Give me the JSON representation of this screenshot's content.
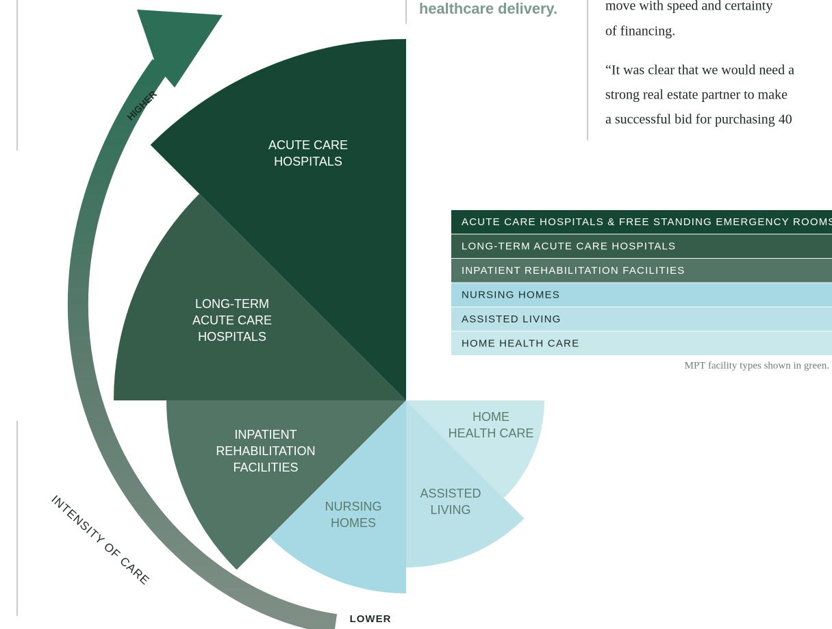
{
  "header": {
    "left_fragment": "healthcare delivery.",
    "right_lines": [
      "move with speed and certainty",
      "of financing."
    ],
    "quote_lines": [
      "“It was clear that we would need a",
      "strong real estate partner to make",
      "a successful bid for purchasing 40"
    ]
  },
  "diagram": {
    "wedges": [
      {
        "label": [
          "ACUTE CARE",
          "HOSPITALS"
        ]
      },
      {
        "label": [
          "LONG-TERM",
          "ACUTE CARE",
          "HOSPITALS"
        ]
      },
      {
        "label": [
          "INPATIENT",
          "REHABILITATION",
          "FACILITIES"
        ]
      },
      {
        "label": [
          "NURSING",
          "HOMES"
        ]
      },
      {
        "label": [
          "ASSISTED",
          "LIVING"
        ]
      },
      {
        "label": [
          "HOME",
          "HEALTH CARE"
        ]
      }
    ],
    "arrow": {
      "higher": "HIGHER",
      "lower": "LOWER",
      "axis_label": "INTENSITY OF CARE"
    }
  },
  "legend": {
    "rows": [
      "ACUTE CARE HOSPITALS & FREE STANDING EMERGENCY ROOMS",
      "LONG-TERM ACUTE CARE HOSPITALS",
      "INPATIENT REHABILITATION FACILITIES",
      "NURSING HOMES",
      "ASSISTED LIVING",
      "HOME HEALTH CARE"
    ],
    "caption": "MPT facility types shown in green."
  }
}
